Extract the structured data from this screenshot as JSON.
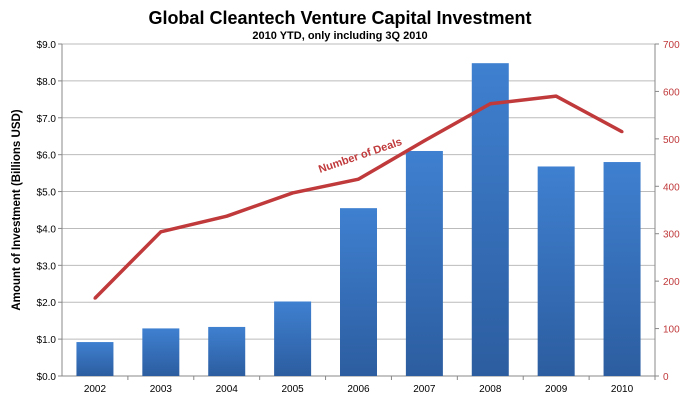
{
  "chart_data": {
    "type": "bar+line",
    "title": "Global Cleantech Venture Capital Investment",
    "subtitle": "2010 YTD, only including 3Q 2010",
    "ylabel": "Amount of Investment (Billions USD)",
    "y2label": "",
    "categories": [
      "2002",
      "2003",
      "2004",
      "2005",
      "2006",
      "2007",
      "2008",
      "2009",
      "2010"
    ],
    "series": [
      {
        "type": "bar",
        "axis": "left",
        "values": [
          0.92,
          1.29,
          1.33,
          2.02,
          4.55,
          6.1,
          8.48,
          5.68,
          5.8
        ],
        "color": "#3b78c9"
      },
      {
        "type": "line",
        "axis": "right",
        "name": "Number of Deals",
        "values": [
          164,
          304,
          337,
          386,
          415,
          496,
          574,
          590,
          515
        ],
        "color": "#c0393b"
      }
    ],
    "ylim": [
      0,
      9
    ],
    "yticks": [
      "$0.0",
      "$1.0",
      "$2.0",
      "$3.0",
      "$4.0",
      "$5.0",
      "$6.0",
      "$7.0",
      "$8.0",
      "$9.0"
    ],
    "y2lim": [
      0,
      700
    ],
    "y2ticks": [
      "0",
      "100",
      "200",
      "300",
      "400",
      "500",
      "600",
      "700"
    ],
    "y2_tick_color": "#c0393b",
    "grid": true,
    "legend": "none"
  }
}
